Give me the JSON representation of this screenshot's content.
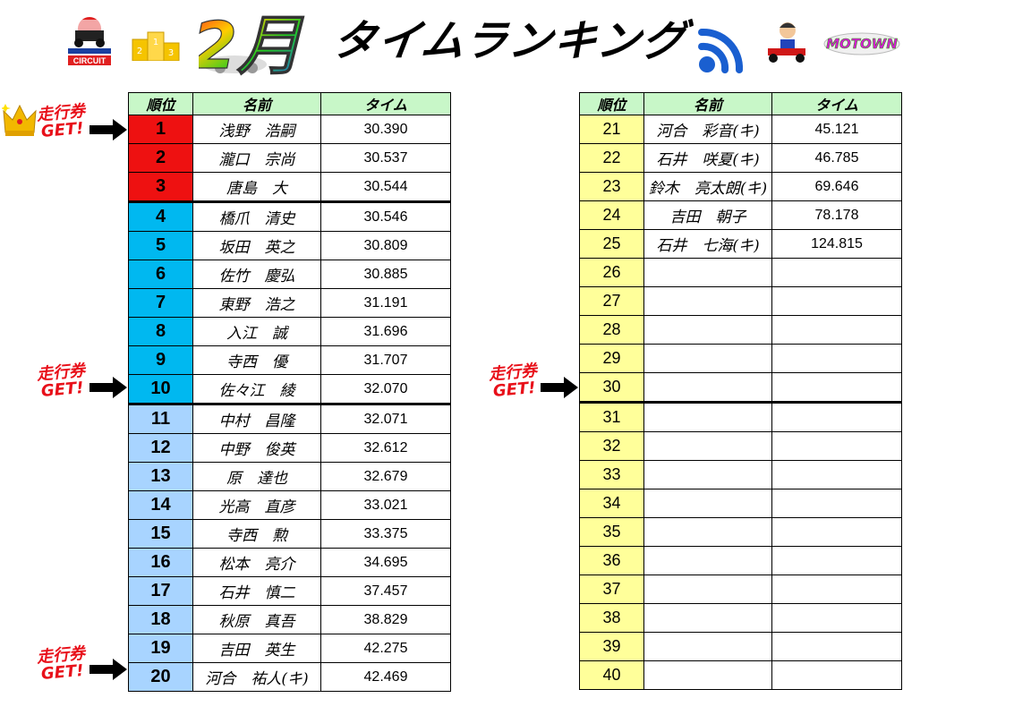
{
  "header": {
    "title": "タイムランキング",
    "month": "2月",
    "logo_text": "CIRCUIT",
    "brand_text": "MOTOWN"
  },
  "colors": {
    "top3": "#ee1111",
    "rank_4_10": "#00b8f0",
    "rank_11_20": "#a8d4ff",
    "rank_21_40": "#ffff9a",
    "header_row": "#c8f7c8"
  },
  "columns": [
    "順位",
    "名前",
    "タイム"
  ],
  "annotations": {
    "ticket_label_line1": "走行券",
    "ticket_label_line2": "GET!"
  },
  "left_table": [
    {
      "pos": "1",
      "name": "浅野　浩嗣",
      "time": "30.390"
    },
    {
      "pos": "2",
      "name": "瀧口　宗尚",
      "time": "30.537"
    },
    {
      "pos": "3",
      "name": "唐島　大",
      "time": "30.544"
    },
    {
      "pos": "4",
      "name": "橋爪　清史",
      "time": "30.546"
    },
    {
      "pos": "5",
      "name": "坂田　英之",
      "time": "30.809"
    },
    {
      "pos": "6",
      "name": "佐竹　慶弘",
      "time": "30.885"
    },
    {
      "pos": "7",
      "name": "東野　浩之",
      "time": "31.191"
    },
    {
      "pos": "8",
      "name": "入江　誠",
      "time": "31.696"
    },
    {
      "pos": "9",
      "name": "寺西　優",
      "time": "31.707"
    },
    {
      "pos": "10",
      "name": "佐々江　綾",
      "time": "32.070"
    },
    {
      "pos": "11",
      "name": "中村　昌隆",
      "time": "32.071"
    },
    {
      "pos": "12",
      "name": "中野　俊英",
      "time": "32.612"
    },
    {
      "pos": "13",
      "name": "原　達也",
      "time": "32.679"
    },
    {
      "pos": "14",
      "name": "光高　直彦",
      "time": "33.021"
    },
    {
      "pos": "15",
      "name": "寺西　勲",
      "time": "33.375"
    },
    {
      "pos": "16",
      "name": "松本　亮介",
      "time": "34.695"
    },
    {
      "pos": "17",
      "name": "石井　慎二",
      "time": "37.457"
    },
    {
      "pos": "18",
      "name": "秋原　真吾",
      "time": "38.829"
    },
    {
      "pos": "19",
      "name": "吉田　英生",
      "time": "42.275"
    },
    {
      "pos": "20",
      "name": "河合　祐人(キ)",
      "time": "42.469"
    }
  ],
  "right_table": [
    {
      "pos": "21",
      "name": "河合　彩音(キ)",
      "time": "45.121"
    },
    {
      "pos": "22",
      "name": "石井　咲夏(キ)",
      "time": "46.785"
    },
    {
      "pos": "23",
      "name": "鈴木　亮太朗(キ)",
      "time": "69.646"
    },
    {
      "pos": "24",
      "name": "吉田　朝子",
      "time": "78.178"
    },
    {
      "pos": "25",
      "name": "石井　七海(キ)",
      "time": "124.815"
    },
    {
      "pos": "26",
      "name": "",
      "time": ""
    },
    {
      "pos": "27",
      "name": "",
      "time": ""
    },
    {
      "pos": "28",
      "name": "",
      "time": ""
    },
    {
      "pos": "29",
      "name": "",
      "time": ""
    },
    {
      "pos": "30",
      "name": "",
      "time": ""
    },
    {
      "pos": "31",
      "name": "",
      "time": ""
    },
    {
      "pos": "32",
      "name": "",
      "time": ""
    },
    {
      "pos": "33",
      "name": "",
      "time": ""
    },
    {
      "pos": "34",
      "name": "",
      "time": ""
    },
    {
      "pos": "35",
      "name": "",
      "time": ""
    },
    {
      "pos": "36",
      "name": "",
      "time": ""
    },
    {
      "pos": "37",
      "name": "",
      "time": ""
    },
    {
      "pos": "38",
      "name": "",
      "time": ""
    },
    {
      "pos": "39",
      "name": "",
      "time": ""
    },
    {
      "pos": "40",
      "name": "",
      "time": ""
    }
  ]
}
